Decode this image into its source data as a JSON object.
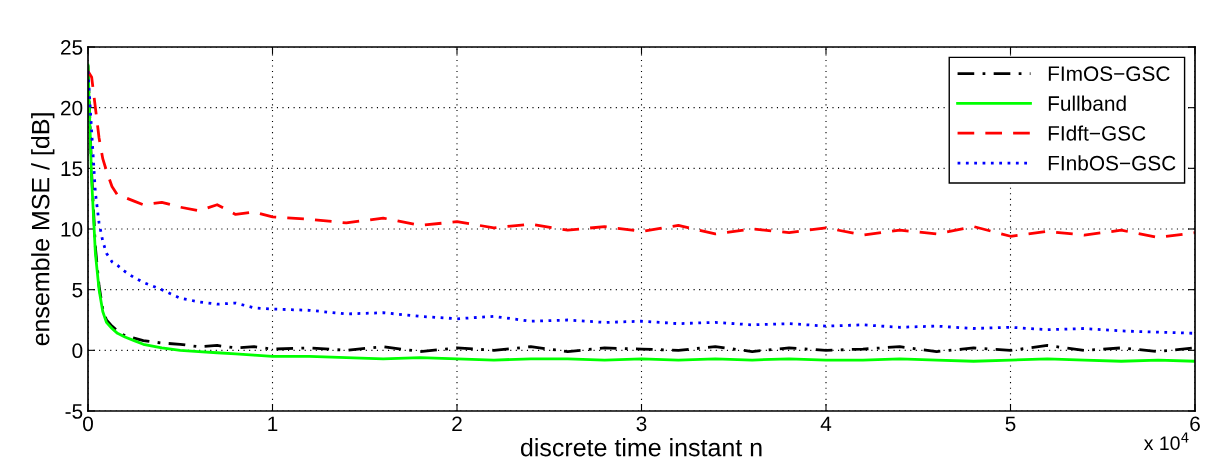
{
  "chart_data": {
    "type": "line",
    "xlabel": "discrete time instant n",
    "ylabel": "ensemble MSE / [dB]",
    "x": [
      0,
      0.02,
      0.04,
      0.06,
      0.08,
      0.1,
      0.13,
      0.16,
      0.2,
      0.25,
      0.3,
      0.4,
      0.5,
      0.6,
      0.7,
      0.8,
      0.9,
      1.0,
      1.2,
      1.4,
      1.6,
      1.8,
      2.0,
      2.2,
      2.4,
      2.6,
      2.8,
      3.0,
      3.2,
      3.4,
      3.6,
      3.8,
      4.0,
      4.2,
      4.4,
      4.6,
      4.8,
      5.0,
      5.2,
      5.4,
      5.6,
      5.8,
      6.0
    ],
    "series": [
      {
        "name": "FImOS−GSC",
        "color": "#000000",
        "line_style": "dashdot",
        "values": [
          23.5,
          14.5,
          8.5,
          5.3,
          3.4,
          2.5,
          2.0,
          1.6,
          1.2,
          1.0,
          0.8,
          0.6,
          0.5,
          0.3,
          0.4,
          0.2,
          0.3,
          0.1,
          0.2,
          0.0,
          0.3,
          -0.1,
          0.2,
          0.0,
          0.3,
          -0.1,
          0.2,
          0.1,
          0.0,
          0.3,
          -0.1,
          0.2,
          0.0,
          0.1,
          0.3,
          -0.1,
          0.2,
          0.0,
          0.4,
          0.0,
          0.2,
          -0.1,
          0.2
        ]
      },
      {
        "name": "Fullband",
        "color": "#00ff00",
        "line_style": "solid",
        "values": [
          23.5,
          14,
          8,
          5,
          3.2,
          2.3,
          1.8,
          1.4,
          1.1,
          0.8,
          0.5,
          0.2,
          0,
          -0.1,
          -0.2,
          -0.3,
          -0.4,
          -0.5,
          -0.5,
          -0.6,
          -0.7,
          -0.6,
          -0.7,
          -0.8,
          -0.7,
          -0.7,
          -0.8,
          -0.7,
          -0.8,
          -0.7,
          -0.8,
          -0.7,
          -0.8,
          -0.8,
          -0.7,
          -0.8,
          -0.9,
          -0.8,
          -0.7,
          -0.8,
          -0.9,
          -0.8,
          -0.9
        ]
      },
      {
        "name": "FIdft−GSC",
        "color": "#ff0000",
        "line_style": "dashed",
        "values": [
          23,
          22.5,
          20,
          17.5,
          15.8,
          14.8,
          13.5,
          12.8,
          12.6,
          12.3,
          12.0,
          12.2,
          11.8,
          11.5,
          12.0,
          11.2,
          11.4,
          11.0,
          10.8,
          10.5,
          10.9,
          10.3,
          10.6,
          10.1,
          10.4,
          9.9,
          10.2,
          9.8,
          10.3,
          9.6,
          10.0,
          9.7,
          10.1,
          9.5,
          9.9,
          9.6,
          10.2,
          9.4,
          9.8,
          9.5,
          9.9,
          9.3,
          9.7
        ]
      },
      {
        "name": "FInbOS−GSC",
        "color": "#0000ff",
        "line_style": "dotted",
        "values": [
          23,
          18,
          13,
          10.5,
          9,
          8,
          7.3,
          7,
          6.5,
          6.0,
          5.6,
          5.0,
          4.3,
          4.0,
          3.8,
          3.9,
          3.5,
          3.4,
          3.3,
          3.0,
          3.1,
          2.8,
          2.6,
          2.8,
          2.4,
          2.5,
          2.3,
          2.4,
          2.2,
          2.3,
          2.1,
          2.2,
          2.0,
          2.1,
          1.9,
          2.0,
          1.8,
          1.9,
          1.7,
          1.8,
          1.6,
          1.5,
          1.4
        ]
      }
    ],
    "xlim": [
      0,
      6
    ],
    "xticks": [
      0,
      1,
      2,
      3,
      4,
      5,
      6
    ],
    "ylim": [
      -5,
      25
    ],
    "yticks": [
      -5,
      0,
      5,
      10,
      15,
      20,
      25
    ],
    "grid": true,
    "legend": "top right",
    "annotations": [
      "x 10$^{4}$"
    ]
  }
}
